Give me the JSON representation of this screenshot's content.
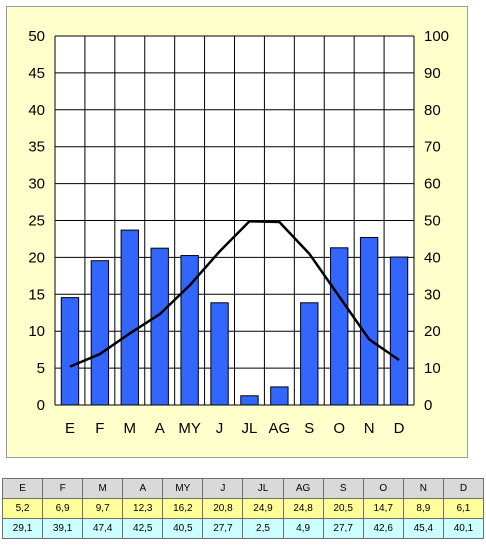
{
  "colors": {
    "panel_bg": "#ffffcc",
    "bar_fill": "#3366ff",
    "line": "#000000",
    "header_row": "#d9d9d9",
    "temp_row": "#ffff99",
    "precip_row": "#ccffff"
  },
  "chart_data": {
    "type": "bar+line",
    "title": "",
    "categories": [
      "E",
      "F",
      "M",
      "A",
      "MY",
      "J",
      "JL",
      "AG",
      "S",
      "O",
      "N",
      "D"
    ],
    "left_axis": {
      "ticks": [
        "0",
        "5",
        "10",
        "15",
        "20",
        "25",
        "30",
        "35",
        "40",
        "45",
        "50"
      ],
      "range": [
        0,
        50
      ]
    },
    "right_axis": {
      "ticks": [
        "0",
        "10",
        "20",
        "30",
        "40",
        "50",
        "60",
        "70",
        "80",
        "90",
        "100"
      ],
      "range": [
        0,
        100
      ]
    },
    "grid": true,
    "series": [
      {
        "type": "bar",
        "axis": "right",
        "values": [
          29.1,
          39.1,
          47.4,
          42.5,
          40.5,
          27.7,
          2.5,
          4.9,
          27.7,
          42.6,
          45.4,
          40.1
        ]
      },
      {
        "type": "line",
        "axis": "left",
        "values": [
          5.2,
          6.9,
          9.7,
          12.3,
          16.2,
          20.8,
          24.9,
          24.8,
          20.5,
          14.7,
          8.9,
          6.1
        ]
      }
    ]
  },
  "table": {
    "header": [
      "E",
      "F",
      "M",
      "A",
      "MY",
      "J",
      "JL",
      "AG",
      "S",
      "O",
      "N",
      "D"
    ],
    "temperature": [
      "5,2",
      "6,9",
      "9,7",
      "12,3",
      "16,2",
      "20,8",
      "24,9",
      "24,8",
      "20,5",
      "14,7",
      "8,9",
      "6,1"
    ],
    "precipitation": [
      "29,1",
      "39,1",
      "47,4",
      "42,5",
      "40,5",
      "27,7",
      "2,5",
      "4,9",
      "27,7",
      "42,6",
      "45,4",
      "40,1"
    ]
  }
}
